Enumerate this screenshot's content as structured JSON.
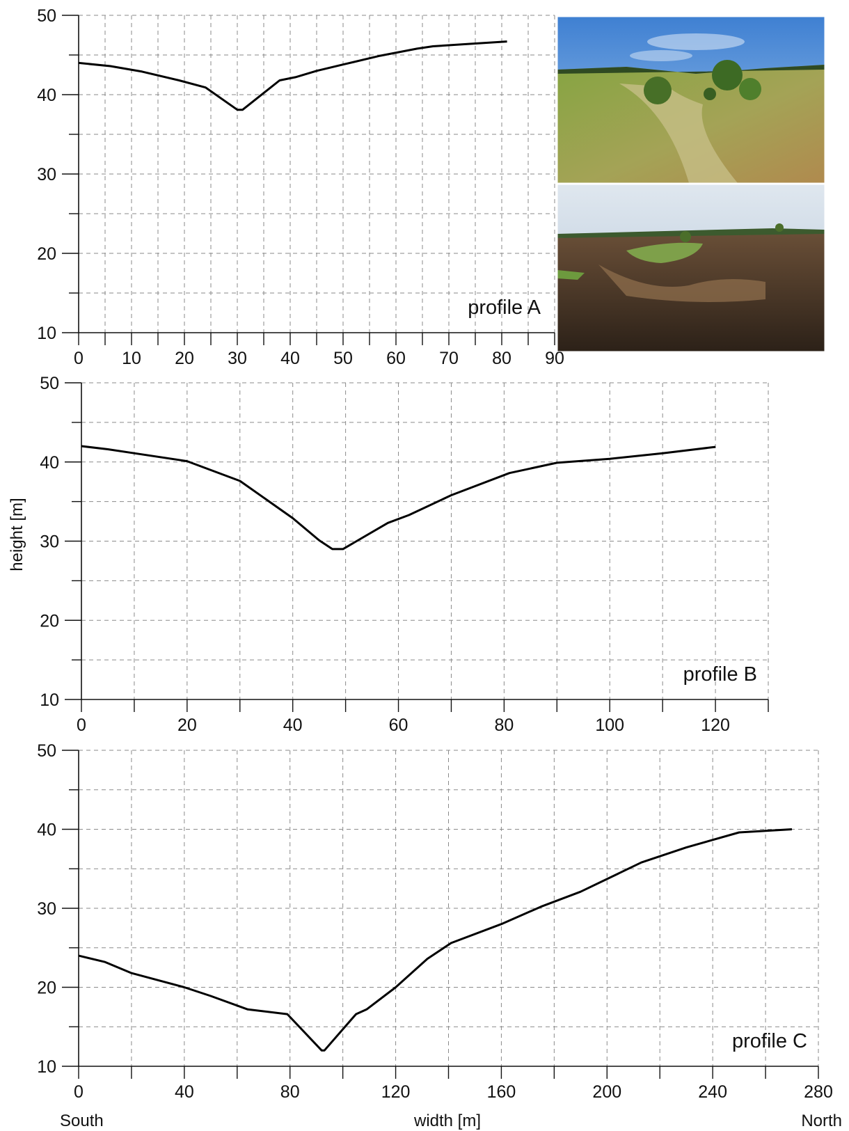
{
  "figure": {
    "ylabel": "height [m]",
    "xlabel": "width [m]",
    "direction_left": "South",
    "direction_right": "North"
  },
  "photos": [
    {
      "name": "gully-photo-summer",
      "colors": {
        "sky": "#4f8fd6",
        "ground": "#7d9a3a"
      }
    },
    {
      "name": "gully-photo-burnt",
      "colors": {
        "sky": "#c9d6e3",
        "ground": "#4a3a2a"
      }
    }
  ],
  "chart_data": [
    {
      "type": "line",
      "label": "profile A",
      "xlim": [
        0,
        90
      ],
      "ylim": [
        10,
        50
      ],
      "x_ticks": [
        0,
        10,
        20,
        30,
        40,
        50,
        60,
        70,
        80,
        90
      ],
      "y_ticks": [
        10,
        20,
        30,
        40,
        50
      ],
      "grid": true,
      "series": [
        {
          "x": [
            0,
            6,
            12,
            19,
            24,
            30,
            31,
            38,
            41,
            45,
            50,
            57,
            64,
            67,
            74,
            81
          ],
          "y": [
            44.0,
            43.6,
            42.9,
            41.8,
            40.9,
            38.1,
            38.1,
            41.8,
            42.2,
            43.0,
            43.8,
            44.9,
            45.8,
            46.1,
            46.4,
            46.7
          ]
        }
      ]
    },
    {
      "type": "line",
      "label": "profile B",
      "xlim": [
        0,
        130
      ],
      "ylim": [
        10,
        50
      ],
      "x_ticks": [
        0,
        20,
        40,
        60,
        80,
        100,
        120
      ],
      "y_ticks": [
        10,
        20,
        30,
        40,
        50
      ],
      "grid": true,
      "series": [
        {
          "x": [
            0,
            5,
            10,
            20,
            30,
            40,
            45,
            47.5,
            49.5,
            58,
            62,
            70,
            81,
            90,
            100,
            110,
            120
          ],
          "y": [
            42.0,
            41.6,
            41.1,
            40.1,
            37.6,
            32.9,
            30.1,
            29.0,
            29.0,
            32.3,
            33.3,
            35.8,
            38.6,
            39.9,
            40.4,
            41.1,
            41.9
          ]
        }
      ]
    },
    {
      "type": "line",
      "label": "profile C",
      "xlim": [
        0,
        280
      ],
      "ylim": [
        10,
        50
      ],
      "x_ticks": [
        0,
        40,
        80,
        120,
        160,
        200,
        240,
        280
      ],
      "y_ticks": [
        10,
        20,
        30,
        40,
        50
      ],
      "grid": true,
      "series": [
        {
          "x": [
            0,
            10,
            20,
            40,
            50,
            64,
            79,
            92,
            93,
            105,
            109,
            120,
            132,
            141,
            160,
            175,
            190,
            213,
            230,
            250,
            260,
            270
          ],
          "y": [
            24.0,
            23.2,
            21.8,
            20.0,
            18.9,
            17.2,
            16.6,
            12.0,
            12.0,
            16.6,
            17.2,
            20.0,
            23.6,
            25.6,
            28.0,
            30.2,
            32.1,
            35.8,
            37.7,
            39.6,
            39.8,
            40.0
          ]
        }
      ]
    }
  ]
}
